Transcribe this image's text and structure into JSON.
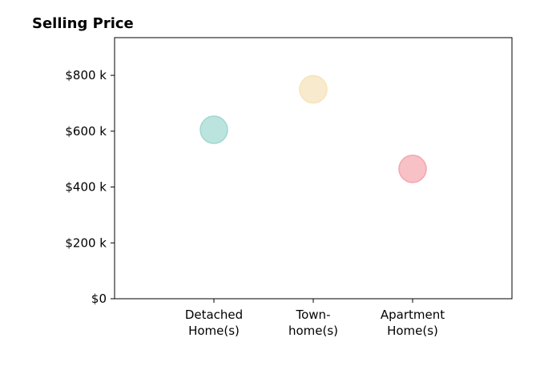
{
  "chart_data": {
    "type": "scatter",
    "title": "Selling Price",
    "xlabel": "",
    "ylabel": "",
    "categories": [
      "Detached Home(s)",
      "Town-home(s)",
      "Apartment Home(s)"
    ],
    "category_tick_lines": [
      [
        "Detached",
        "Home(s)"
      ],
      [
        "Town-",
        "home(s)"
      ],
      [
        "Apartment",
        "Home(s)"
      ]
    ],
    "values": [
      605000,
      750000,
      465000
    ],
    "colors": [
      "#9fd8d0",
      "#f5e3b8",
      "#f4a6ae"
    ],
    "ylim": [
      0,
      935000
    ],
    "xlim": [
      0,
      4
    ],
    "yticks": [
      0,
      200000,
      400000,
      600000,
      800000
    ],
    "ytick_labels": [
      "$0",
      "$200 k",
      "$400 k",
      "$600 k",
      "$800 k"
    ],
    "grid": false,
    "legend": "none"
  }
}
